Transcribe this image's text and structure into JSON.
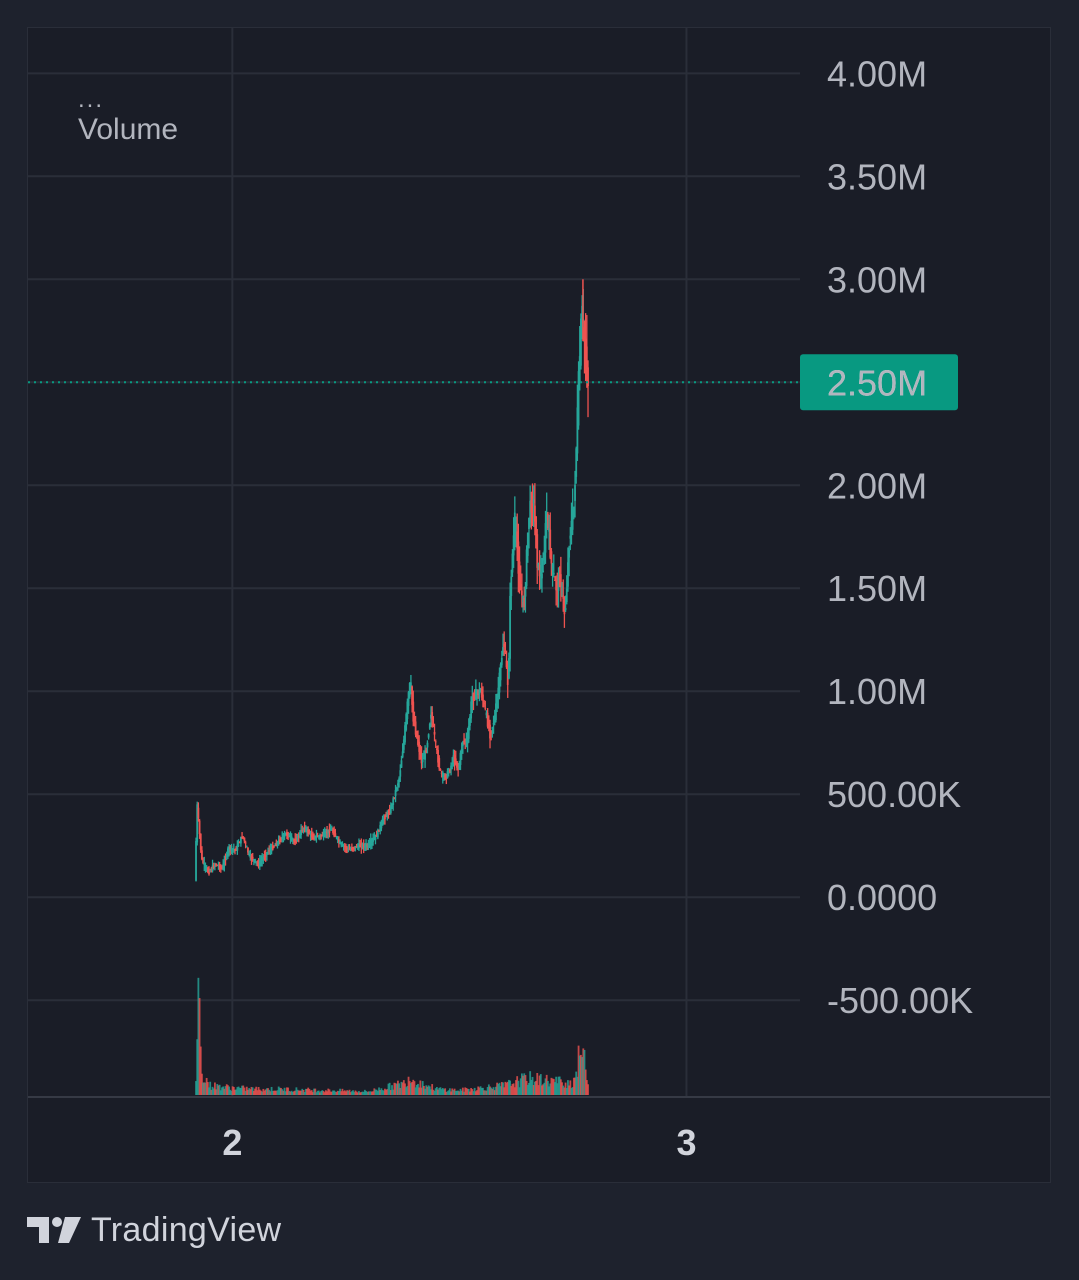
{
  "legend": {
    "more": "...",
    "title": "Volume"
  },
  "price_tag": {
    "value": "2.50M",
    "color": "#089981"
  },
  "brand": {
    "name": "TradingView",
    "icon": "tradingview-logo-icon"
  },
  "colors": {
    "up": "#26a69a",
    "down": "#ef5350",
    "grid": "#2a2e39",
    "axis_text": "#b2b5be",
    "background": "#1a1d27"
  },
  "chart_data": {
    "type": "candlestick",
    "title": "",
    "series_name": "Volume",
    "y_ticks": [
      "4.00M",
      "3.50M",
      "3.00M",
      "2.50M",
      "2.00M",
      "1.50M",
      "1.00M",
      "500.00K",
      "0.0000",
      "-500.00K"
    ],
    "y_tick_values": [
      4000000,
      3500000,
      3000000,
      2500000,
      2000000,
      1500000,
      1000000,
      500000,
      0,
      -500000
    ],
    "x_ticks": [
      "2",
      "3"
    ],
    "x_tick_values": [
      2,
      3
    ],
    "ylim": [
      -970000,
      4220000
    ],
    "xlim": [
      1.55,
      3.25
    ],
    "last_value": 2500000,
    "grid": true,
    "price_path": [
      [
        1.92,
        80000
      ],
      [
        1.925,
        450000
      ],
      [
        1.935,
        180000
      ],
      [
        1.95,
        120000
      ],
      [
        1.965,
        160000
      ],
      [
        1.98,
        140000
      ],
      [
        1.995,
        240000
      ],
      [
        2.01,
        230000
      ],
      [
        2.025,
        300000
      ],
      [
        2.04,
        200000
      ],
      [
        2.06,
        160000
      ],
      [
        2.08,
        220000
      ],
      [
        2.1,
        260000
      ],
      [
        2.12,
        310000
      ],
      [
        2.14,
        270000
      ],
      [
        2.16,
        340000
      ],
      [
        2.18,
        290000
      ],
      [
        2.2,
        300000
      ],
      [
        2.22,
        330000
      ],
      [
        2.24,
        260000
      ],
      [
        2.26,
        230000
      ],
      [
        2.28,
        250000
      ],
      [
        2.3,
        250000
      ],
      [
        2.32,
        300000
      ],
      [
        2.335,
        380000
      ],
      [
        2.35,
        420000
      ],
      [
        2.36,
        500000
      ],
      [
        2.37,
        580000
      ],
      [
        2.38,
        760000
      ],
      [
        2.39,
        980000
      ],
      [
        2.395,
        1050000
      ],
      [
        2.4,
        880000
      ],
      [
        2.41,
        760000
      ],
      [
        2.42,
        650000
      ],
      [
        2.43,
        720000
      ],
      [
        2.44,
        900000
      ],
      [
        2.45,
        740000
      ],
      [
        2.46,
        610000
      ],
      [
        2.47,
        580000
      ],
      [
        2.48,
        610000
      ],
      [
        2.49,
        680000
      ],
      [
        2.5,
        620000
      ],
      [
        2.51,
        760000
      ],
      [
        2.52,
        760000
      ],
      [
        2.53,
        970000
      ],
      [
        2.54,
        990000
      ],
      [
        2.55,
        1000000
      ],
      [
        2.56,
        900000
      ],
      [
        2.57,
        790000
      ],
      [
        2.58,
        870000
      ],
      [
        2.59,
        1050000
      ],
      [
        2.6,
        1250000
      ],
      [
        2.61,
        1020000
      ],
      [
        2.615,
        1520000
      ],
      [
        2.625,
        1850000
      ],
      [
        2.635,
        1520000
      ],
      [
        2.645,
        1410000
      ],
      [
        2.655,
        1850000
      ],
      [
        2.665,
        1950000
      ],
      [
        2.675,
        1600000
      ],
      [
        2.685,
        1550000
      ],
      [
        2.695,
        1880000
      ],
      [
        2.705,
        1620000
      ],
      [
        2.715,
        1500000
      ],
      [
        2.725,
        1550000
      ],
      [
        2.735,
        1360000
      ],
      [
        2.745,
        1750000
      ],
      [
        2.755,
        1900000
      ],
      [
        2.765,
        2500000
      ],
      [
        2.772,
        2850000
      ],
      [
        2.78,
        2650000
      ],
      [
        2.785,
        2500000
      ]
    ],
    "volume_profile": [
      [
        1.92,
        0.12
      ],
      [
        1.925,
        0.95
      ],
      [
        1.93,
        0.42
      ],
      [
        1.935,
        0.18
      ],
      [
        1.95,
        0.08
      ],
      [
        2.0,
        0.06
      ],
      [
        2.05,
        0.05
      ],
      [
        2.1,
        0.05
      ],
      [
        2.2,
        0.04
      ],
      [
        2.3,
        0.03
      ],
      [
        2.38,
        0.1
      ],
      [
        2.39,
        0.16
      ],
      [
        2.4,
        0.12
      ],
      [
        2.45,
        0.05
      ],
      [
        2.5,
        0.04
      ],
      [
        2.55,
        0.06
      ],
      [
        2.6,
        0.08
      ],
      [
        2.65,
        0.14
      ],
      [
        2.7,
        0.12
      ],
      [
        2.75,
        0.1
      ],
      [
        2.77,
        0.4
      ],
      [
        2.78,
        0.15
      ]
    ]
  }
}
